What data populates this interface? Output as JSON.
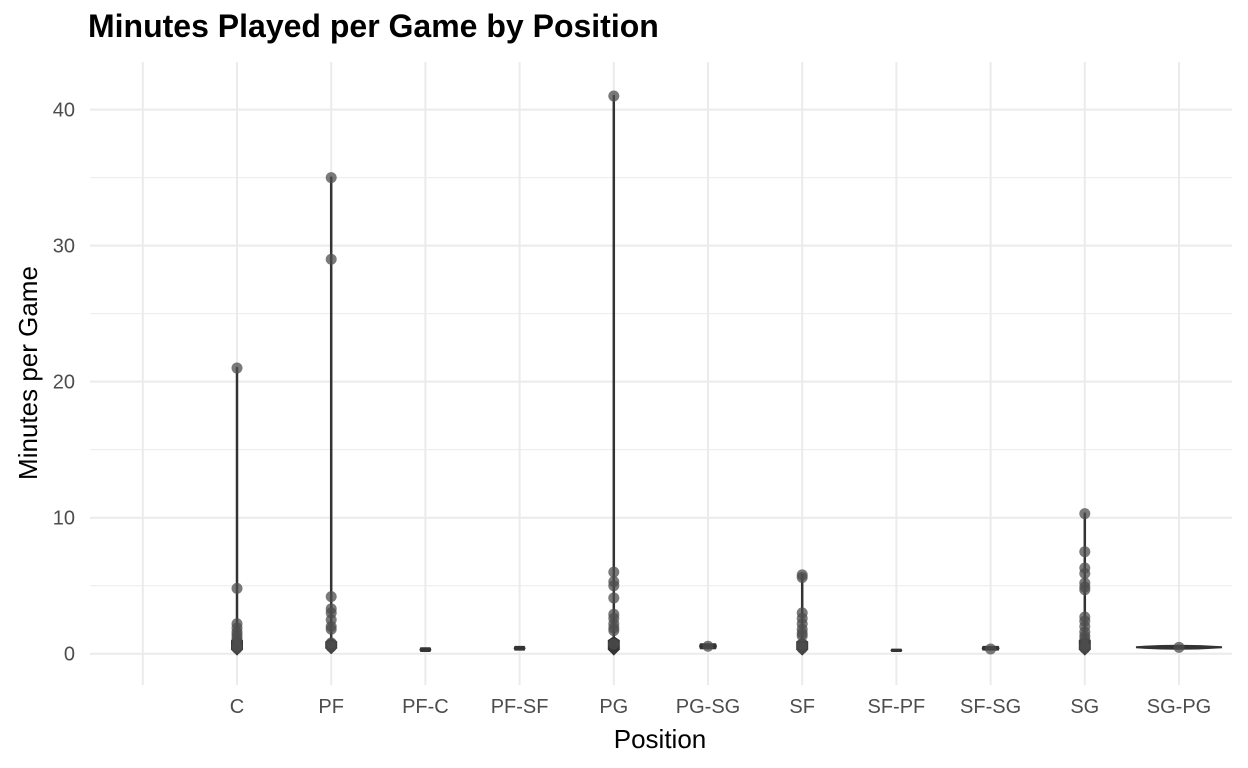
{
  "chart_data": {
    "type": "violin",
    "title": "Minutes Played per Game by Position",
    "xlabel": "Position",
    "ylabel": "Minutes per Game",
    "categories": [
      "C",
      "PF",
      "PF-C",
      "PF-SF",
      "PG",
      "PG-SG",
      "SF",
      "SF-PF",
      "SF-SG",
      "SG",
      "SG-PG"
    ],
    "ylim": [
      -2.3,
      43.5
    ],
    "yticks": [
      0,
      10,
      20,
      30,
      40
    ],
    "grid": true,
    "colors": {
      "grid": "#ebebeb",
      "violin": "#333333",
      "point": "#4d4d4d",
      "text": "#4d4d4d"
    },
    "groups": [
      {
        "category": "C",
        "min": 0.2,
        "max": 21.0,
        "band": [
          0.3,
          1.0
        ],
        "points": [
          21.0,
          4.8,
          2.2,
          1.9,
          1.6,
          1.4,
          1.2,
          1.0,
          0.6,
          0.4
        ]
      },
      {
        "category": "PF",
        "min": 0.1,
        "max": 35.0,
        "band": [
          0.4,
          0.9
        ],
        "points": [
          35.0,
          29.0,
          4.2,
          3.3,
          3.0,
          2.5,
          2.0,
          1.8,
          0.8,
          0.5
        ]
      },
      {
        "category": "PF-C",
        "min": 0.2,
        "max": 0.4,
        "band": [
          0.2,
          0.4
        ],
        "points": []
      },
      {
        "category": "PF-SF",
        "min": 0.3,
        "max": 0.5,
        "band": [
          0.3,
          0.5
        ],
        "points": []
      },
      {
        "category": "PG",
        "min": 0.1,
        "max": 41.0,
        "band": [
          0.3,
          1.0
        ],
        "points": [
          41.0,
          6.0,
          5.3,
          5.0,
          4.1,
          2.9,
          2.6,
          2.2,
          1.9,
          1.7,
          0.7
        ]
      },
      {
        "category": "PG-SG",
        "min": 0.4,
        "max": 0.7,
        "band": [
          0.4,
          0.7
        ],
        "points": [
          0.55
        ]
      },
      {
        "category": "SF",
        "min": 0.1,
        "max": 5.8,
        "band": [
          0.3,
          0.9
        ],
        "points": [
          5.8,
          5.6,
          3.0,
          2.6,
          2.2,
          1.8,
          1.5,
          1.3,
          0.7,
          0.4
        ]
      },
      {
        "category": "SF-PF",
        "min": 0.2,
        "max": 0.3,
        "band": [
          0.2,
          0.3
        ],
        "points": []
      },
      {
        "category": "SF-SG",
        "min": 0.3,
        "max": 0.5,
        "band": [
          0.3,
          0.5
        ],
        "points": [
          0.35
        ]
      },
      {
        "category": "SG",
        "min": 0.1,
        "max": 10.3,
        "band": [
          0.3,
          1.0
        ],
        "points": [
          10.3,
          7.5,
          6.3,
          5.9,
          5.2,
          4.9,
          4.7,
          2.7,
          2.4,
          2.0,
          1.6,
          1.3,
          1.1,
          0.6,
          0.4
        ]
      },
      {
        "category": "SG-PG",
        "min": 0.45,
        "max": 0.5,
        "band": [
          0.45,
          0.5
        ],
        "points": [
          0.47
        ]
      }
    ]
  }
}
